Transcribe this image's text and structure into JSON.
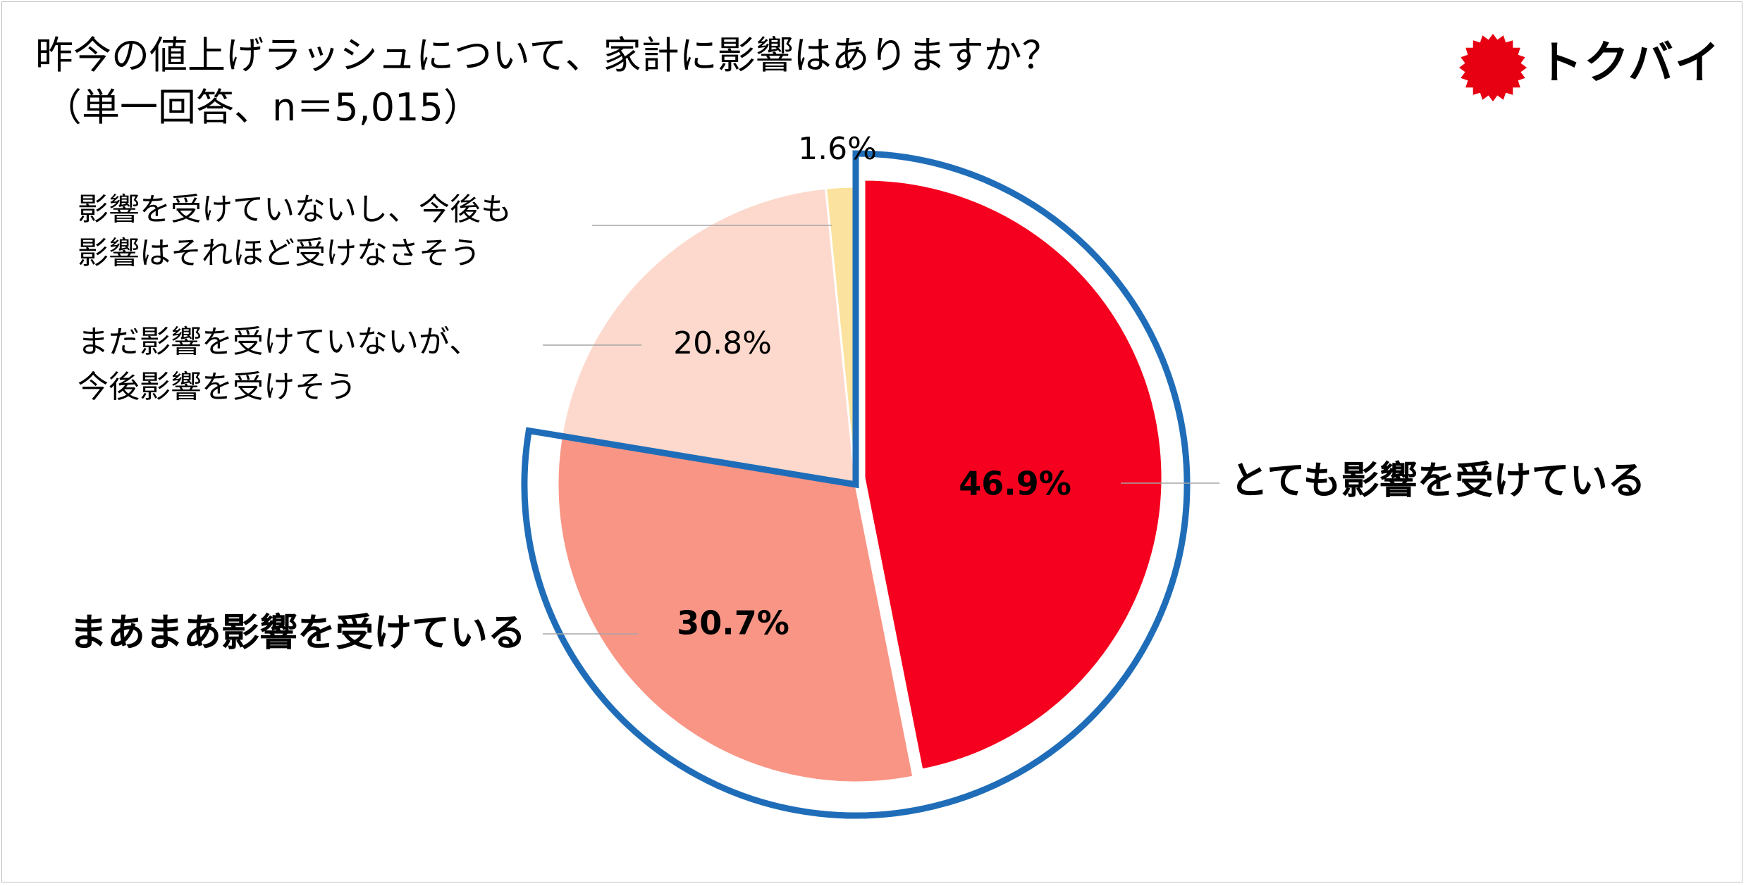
{
  "header": {
    "title": "昨今の値上げラッシュについて、家計に影響はありますか？",
    "subtitle": "（単一回答、n＝5,015）"
  },
  "logo": {
    "text": "トクバイ",
    "icon": "red-starburst-icon",
    "color": "#e60012"
  },
  "chart_data": {
    "type": "pie",
    "title": "昨今の値上げラッシュについて、家計に影響はありますか？",
    "subtitle": "（単一回答、n＝5,015）",
    "slices": [
      {
        "label": "とても影響を受けている",
        "value": 46.9,
        "value_label": "46.9%",
        "color": "#f5001e"
      },
      {
        "label": "まあまあ影響を受けている",
        "value": 30.7,
        "value_label": "30.7%",
        "color": "#f99585"
      },
      {
        "label": "まだ影響を受けていないが、今後影響を受けそう",
        "label_lines": [
          "まだ影響を受けていないが、",
          "今後影響を受けそう"
        ],
        "value": 20.8,
        "value_label": "20.8%",
        "color": "#fdd9cd"
      },
      {
        "label": "影響を受けていないし、今後も影響はそれほど受けなさそう",
        "label_lines": [
          "影響を受けていないし、今後も",
          "影響はそれほど受けなさそう"
        ],
        "value": 1.6,
        "value_label": "1.6%",
        "color": "#fbe29e"
      }
    ],
    "start_angle": "12 o'clock",
    "direction": "clockwise",
    "highlight": {
      "slices": [
        "とても影響を受けている",
        "まあまあ影響を受けている"
      ],
      "outline_color": "#1f6db8"
    }
  }
}
